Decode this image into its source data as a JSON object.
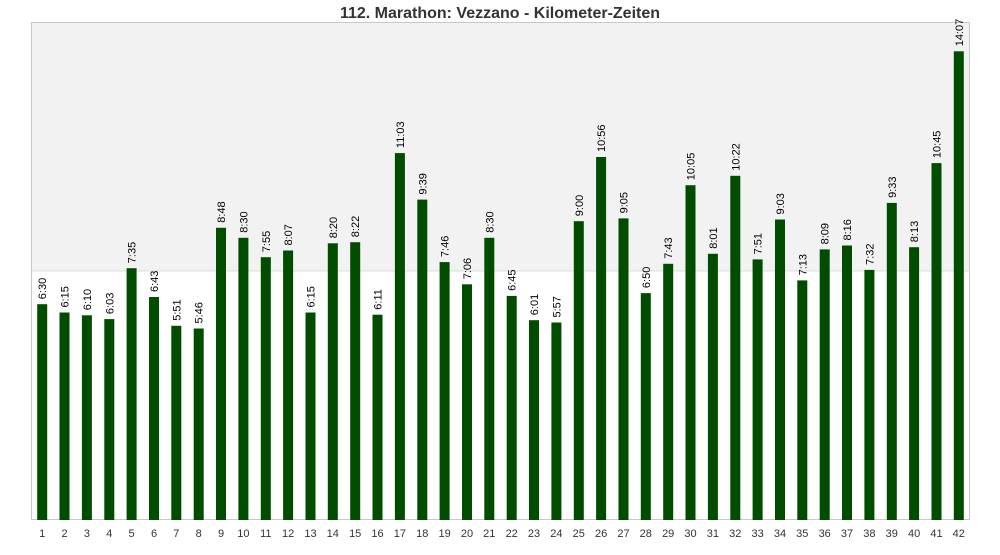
{
  "chart_data": {
    "type": "bar",
    "title": "112. Marathon: Vezzano - Kilometer-Zeiten",
    "xlabel": "",
    "ylabel": "",
    "categories": [
      "1",
      "2",
      "3",
      "4",
      "5",
      "6",
      "7",
      "8",
      "9",
      "10",
      "11",
      "12",
      "13",
      "14",
      "15",
      "16",
      "17",
      "18",
      "19",
      "20",
      "21",
      "22",
      "23",
      "24",
      "25",
      "26",
      "27",
      "28",
      "29",
      "30",
      "31",
      "32",
      "33",
      "34",
      "35",
      "36",
      "37",
      "38",
      "39",
      "40",
      "41",
      "42"
    ],
    "labels": [
      "6:30",
      "6:15",
      "6:10",
      "6:03",
      "7:35",
      "6:43",
      "5:51",
      "5:46",
      "8:48",
      "8:30",
      "7:55",
      "8:07",
      "6:15",
      "8:20",
      "8:22",
      "6:11",
      "11:03",
      "9:39",
      "7:46",
      "7:06",
      "8:30",
      "6:45",
      "6:01",
      "5:57",
      "9:00",
      "10:56",
      "9:05",
      "6:50",
      "7:43",
      "10:05",
      "8:01",
      "10:22",
      "7:51",
      "9:03",
      "7:13",
      "8:09",
      "8:16",
      "7:32",
      "9:33",
      "8:13",
      "10:45",
      "14:07"
    ],
    "values_seconds": [
      390,
      375,
      370,
      363,
      455,
      403,
      351,
      346,
      528,
      510,
      475,
      487,
      375,
      500,
      502,
      371,
      663,
      579,
      466,
      426,
      510,
      405,
      361,
      357,
      540,
      656,
      545,
      410,
      463,
      605,
      481,
      622,
      471,
      543,
      433,
      489,
      496,
      452,
      573,
      493,
      645,
      847
    ],
    "ylim_seconds": [
      0,
      900
    ],
    "grid": false,
    "colors": {
      "bar": "#004d00",
      "upper_band": "#f2f2f2",
      "plot_border": "#c8c8c8",
      "title": "#333333",
      "label": "#000000"
    }
  }
}
